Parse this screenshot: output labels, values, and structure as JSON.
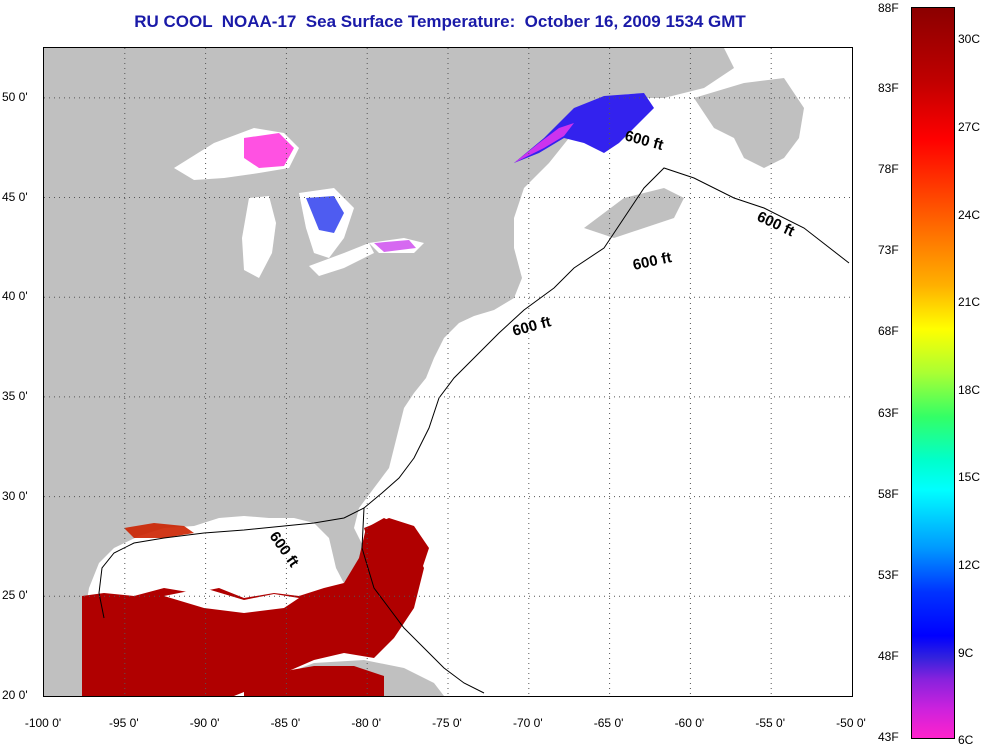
{
  "title": "RU COOL  NOAA-17  Sea Surface Temperature:  October 16, 2009 1534 GMT",
  "map": {
    "lon_range": [
      -100,
      -50
    ],
    "lat_range": [
      20,
      52.5
    ],
    "longitude_labels": [
      "-100 0'",
      "-95 0'",
      "-90 0'",
      "-85 0'",
      "-80 0'",
      "-75 0'",
      "-70 0'",
      "-65 0'",
      "-60 0'",
      "-55 0'",
      "-50 0'"
    ],
    "longitude_values": [
      -100,
      -95,
      -90,
      -85,
      -80,
      -75,
      -70,
      -65,
      -60,
      -55,
      -50
    ],
    "latitude_labels": [
      "50 0'",
      "45 0'",
      "40 0'",
      "35 0'",
      "30 0'",
      "25 0'",
      "20 0'"
    ],
    "latitude_values": [
      50,
      45,
      40,
      35,
      30,
      25,
      20
    ],
    "contour_label": "600 ft",
    "contour_labels": [
      {
        "text": "600 ft",
        "lon": -64.8,
        "lat": 47.9
      },
      {
        "text": "600 ft",
        "lon": -54.5,
        "lat": 44.5
      },
      {
        "text": "600 ft",
        "lon": -63.3,
        "lat": 43.0
      },
      {
        "text": "600 ft",
        "lon": -70.5,
        "lat": 40.0
      },
      {
        "text": "600 ft",
        "lon": -84.3,
        "lat": 27.3
      }
    ],
    "colors": {
      "land": "#c0c0c0",
      "ocean_cloud": "#ffffff",
      "grid": "#555555",
      "warm": "#b00000",
      "cold": "#2233ee",
      "lake_pink": "#ff33dd"
    }
  },
  "colorbar": {
    "fahrenheit_labels": [
      "88F",
      "83F",
      "78F",
      "73F",
      "68F",
      "63F",
      "58F",
      "53F",
      "48F",
      "43F"
    ],
    "fahrenheit_values": [
      88,
      83,
      78,
      73,
      68,
      63,
      58,
      53,
      48,
      43
    ],
    "celsius_labels": [
      "30C",
      "27C",
      "24C",
      "21C",
      "18C",
      "15C",
      "12C",
      "9C",
      "6C"
    ],
    "celsius_values": [
      30,
      27,
      24,
      21,
      18,
      15,
      12,
      9,
      6
    ],
    "range_f": [
      43,
      88
    ]
  }
}
